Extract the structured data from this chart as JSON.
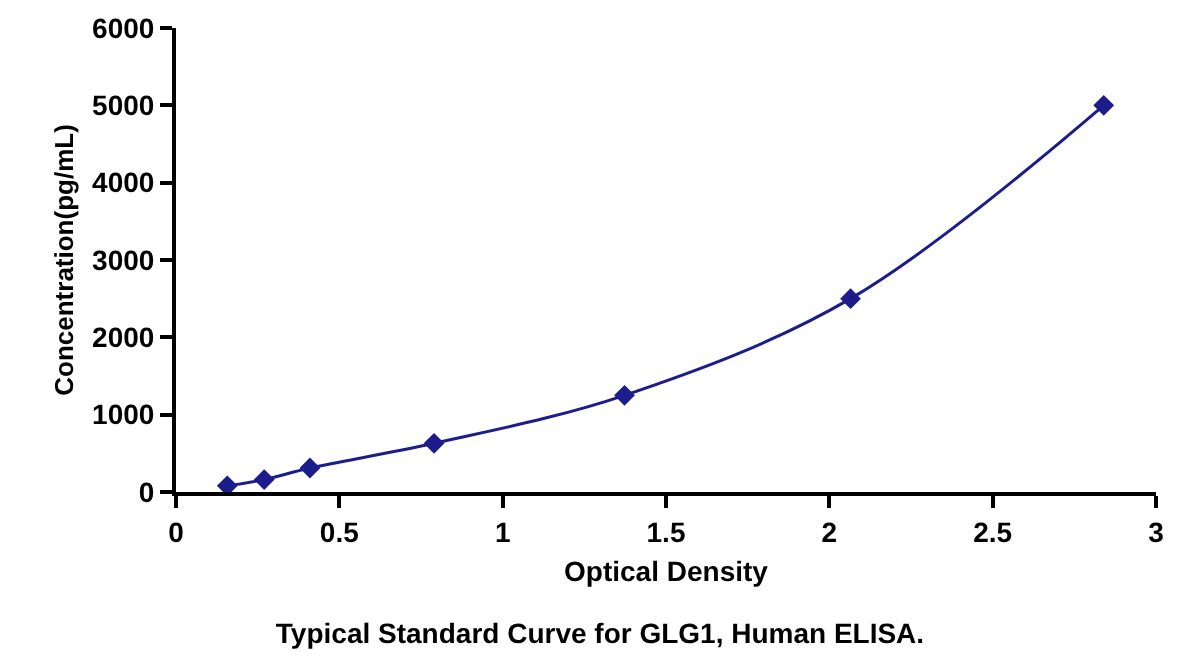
{
  "chart_data": {
    "type": "line",
    "title": "Typical Standard Curve for GLG1, Human ELISA.",
    "xlabel": "Optical Density",
    "ylabel": "Concentration(pg/mL)",
    "x": [
      0.157,
      0.27,
      0.41,
      0.79,
      1.373,
      2.065,
      2.84
    ],
    "series": [
      {
        "color": "#1c1c8c",
        "values": [
          80,
          160,
          310,
          630,
          1250,
          2500,
          5000
        ]
      }
    ],
    "xlim": [
      0,
      3
    ],
    "xticks": [
      0,
      0.5,
      1,
      1.5,
      2,
      2.5,
      3
    ],
    "ylim": [
      0,
      6000
    ],
    "yticks": [
      0,
      1000,
      2000,
      3000,
      4000,
      5000,
      6000
    ],
    "grid": false,
    "marker": "diamond",
    "line_style": "solid"
  }
}
